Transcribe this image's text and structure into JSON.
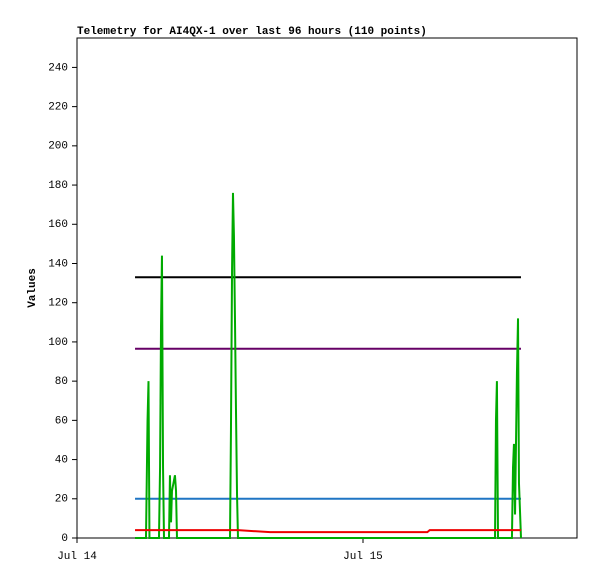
{
  "chart_data": {
    "type": "line",
    "title": "Telemetry for AI4QX-1 over last 96 hours (110 points)",
    "y_label": "Values",
    "x": [
      4.87,
      5.79,
      5.92,
      6.0,
      6.08,
      6.88,
      6.97,
      7.05,
      7.13,
      7.22,
      7.3,
      7.72,
      7.8,
      7.89,
      7.97,
      8.22,
      8.31,
      8.39,
      12.84,
      12.92,
      13.01,
      13.09,
      13.17,
      13.26,
      13.34,
      13.43,
      13.51,
      16.2,
      29.4,
      29.6,
      35.08,
      35.16,
      35.24,
      35.33,
      36.5,
      36.59,
      36.67,
      36.76,
      36.92,
      37.01,
      37.09,
      37.26
    ],
    "series": [
      {
        "color": "#000000",
        "values": [
          133,
          133,
          133,
          133,
          133,
          133,
          133,
          133,
          133,
          133,
          133,
          133,
          133,
          133,
          133,
          133,
          133,
          133,
          133,
          133,
          133,
          133,
          133,
          133,
          133,
          133,
          133,
          133,
          133,
          133,
          133,
          133,
          133,
          133,
          133,
          133,
          133,
          133,
          133,
          133,
          133,
          133
        ]
      },
      {
        "color": "#660066",
        "values": [
          96.5,
          96.5,
          96.5,
          96.5,
          96.5,
          96.5,
          96.5,
          96.5,
          96.5,
          96.5,
          96.5,
          96.5,
          96.5,
          96.5,
          96.5,
          96.5,
          96.5,
          96.5,
          96.5,
          96.5,
          96.5,
          96.5,
          96.5,
          96.5,
          96.5,
          96.5,
          96.5,
          96.5,
          96.5,
          96.5,
          96.5,
          96.5,
          96.5,
          96.5,
          96.5,
          96.5,
          96.5,
          96.5,
          96.5,
          96.5,
          96.5,
          96.5
        ]
      },
      {
        "color": "#1f75c4",
        "values": [
          20,
          20,
          20,
          20,
          20,
          20,
          20,
          20,
          20,
          20,
          20,
          20,
          20,
          20,
          20,
          20,
          20,
          20,
          20,
          20,
          20,
          20,
          20,
          20,
          20,
          20,
          20,
          20,
          20,
          20,
          20,
          20,
          20,
          20,
          20,
          20,
          20,
          20,
          20,
          20,
          20,
          20
        ]
      },
      {
        "color": "#00aa00",
        "values": [
          0,
          0,
          60,
          80,
          0,
          0,
          36,
          108,
          144,
          36,
          0,
          0,
          32,
          8,
          24,
          32,
          24,
          0,
          0,
          55,
          136,
          176,
          154,
          110,
          66,
          22,
          0,
          0,
          0,
          0,
          0,
          60,
          80,
          0,
          0,
          36,
          48,
          12,
          84,
          112,
          28,
          0
        ]
      },
      {
        "color": "#ee0000",
        "values": [
          4,
          4,
          4,
          4,
          4,
          4,
          4,
          4,
          4,
          4,
          4,
          4,
          4,
          4,
          4,
          4,
          4,
          4,
          4,
          4,
          4,
          4,
          4,
          4,
          4,
          4,
          4,
          3,
          3,
          4,
          4,
          4,
          4,
          4,
          4,
          4,
          4,
          4,
          4,
          4,
          4,
          4
        ]
      }
    ],
    "xlim": [
      0,
      41.96
    ],
    "xticks": [
      {
        "value": 0,
        "label": "Jul 14"
      },
      {
        "value": 24,
        "label": "Jul 15"
      }
    ],
    "ylim": [
      0,
      255
    ],
    "yticks": [
      0,
      20,
      40,
      60,
      80,
      100,
      120,
      140,
      160,
      180,
      200,
      220,
      240
    ]
  }
}
